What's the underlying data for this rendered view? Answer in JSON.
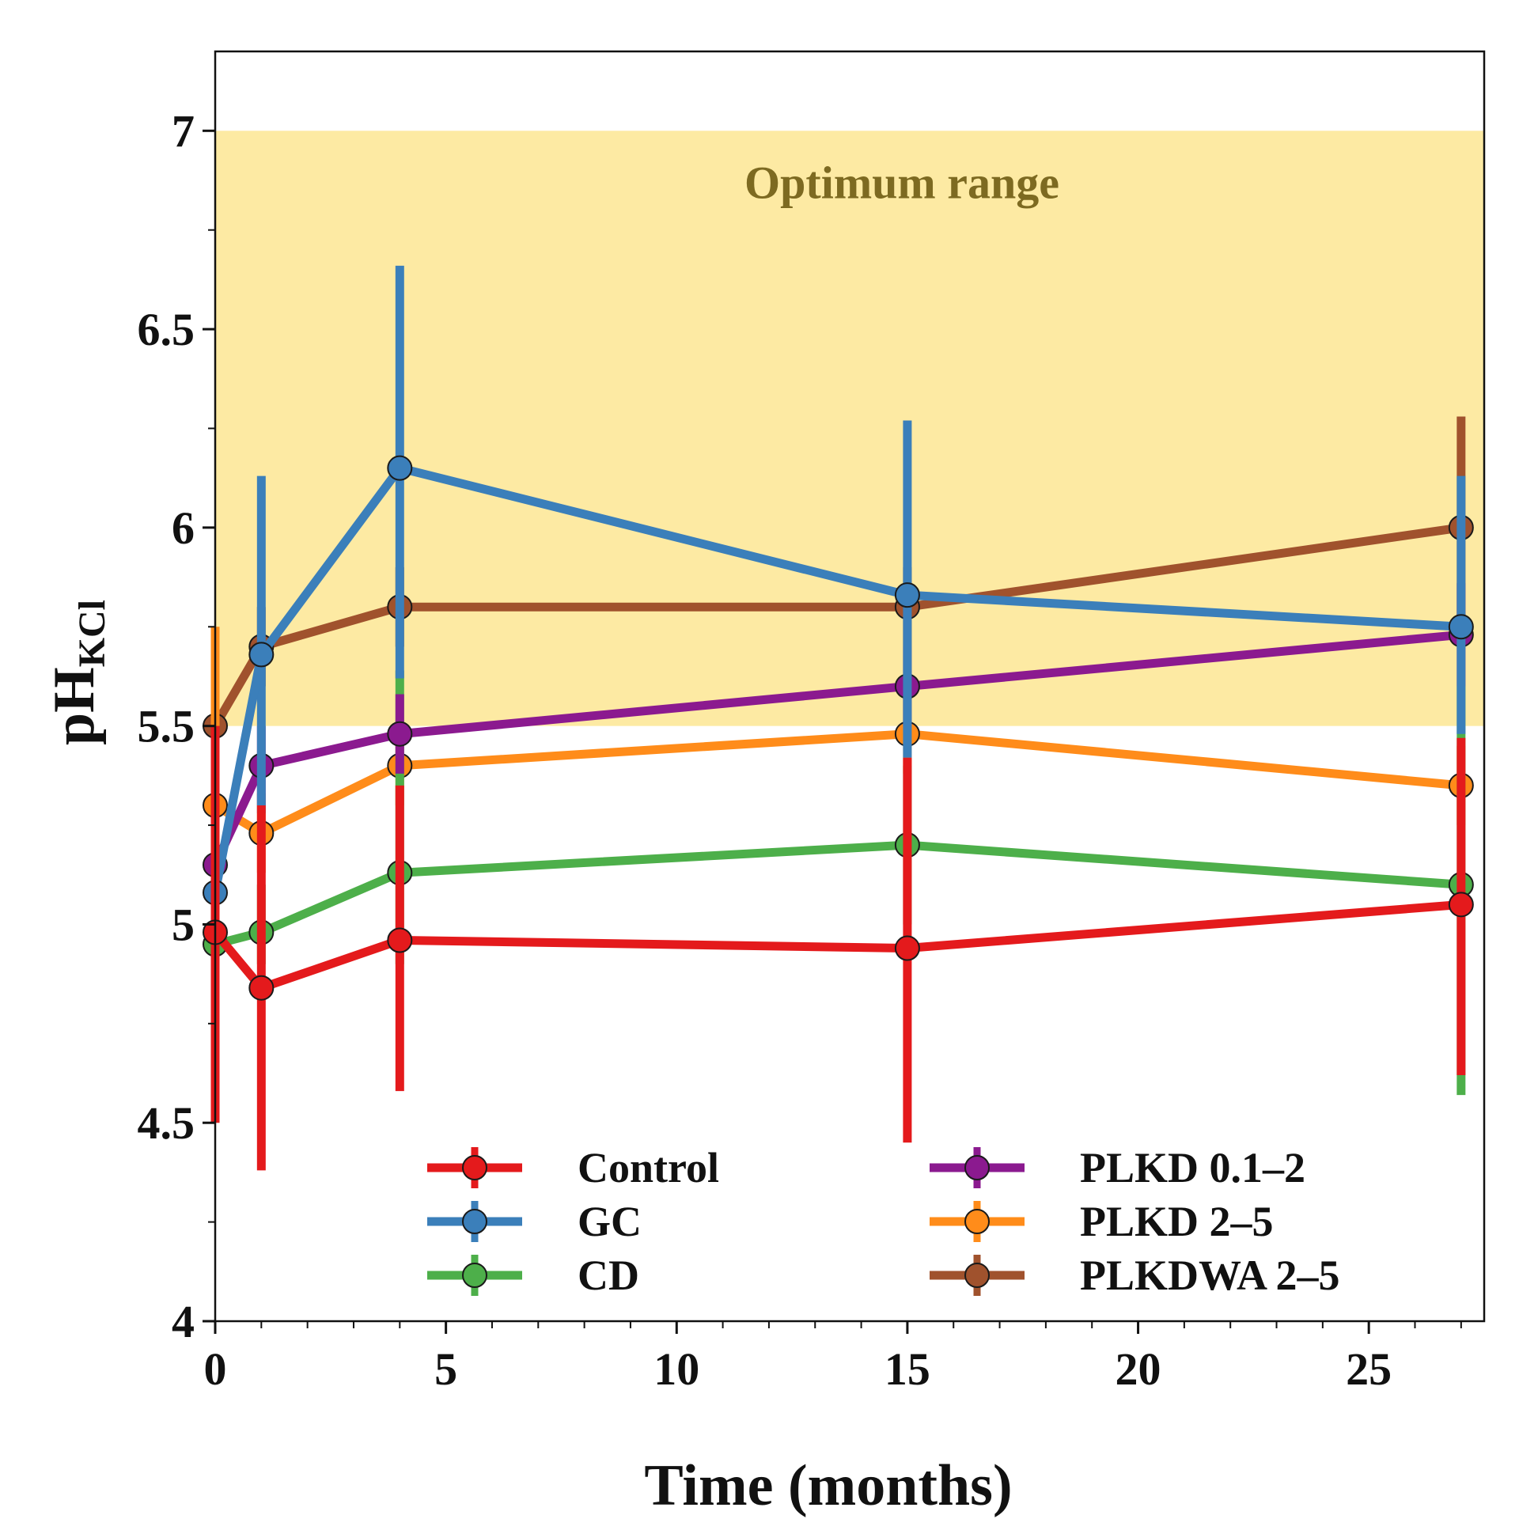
{
  "chart_data": {
    "type": "line",
    "title": "",
    "xlabel": "Time (months)",
    "ylabel": "pH",
    "ylabel_subscript": "KCl",
    "xlim": [
      0,
      27.5
    ],
    "ylim": [
      4,
      7.2
    ],
    "xticks": [
      0,
      5,
      10,
      15,
      20,
      25
    ],
    "yticks": [
      4,
      4.5,
      5,
      5.5,
      6,
      6.5,
      7
    ],
    "grid": false,
    "legend_position": "bottom-center",
    "band": {
      "label": "Optimum range",
      "y_from": 5.5,
      "y_to": 7,
      "color": "#fdeaa3",
      "label_color": "#7d6a21"
    },
    "x": [
      0,
      1,
      4,
      15,
      27
    ],
    "series": [
      {
        "name": "Control",
        "color": "#e41a1c",
        "values": [
          4.98,
          4.84,
          4.96,
          4.94,
          5.05
        ],
        "err_low": [
          4.5,
          4.38,
          4.58,
          4.45,
          4.62
        ],
        "err_high": [
          5.5,
          5.3,
          5.35,
          5.42,
          5.47
        ]
      },
      {
        "name": "GC",
        "color": "#3b7fba",
        "values": [
          5.08,
          5.68,
          6.15,
          5.83,
          5.75
        ],
        "err_low": [
          5.0,
          5.28,
          5.62,
          5.42,
          5.48
        ],
        "err_high": [
          5.3,
          6.13,
          6.66,
          6.27,
          6.13
        ]
      },
      {
        "name": "CD",
        "color": "#4daf4a",
        "values": [
          4.95,
          4.98,
          5.13,
          5.2,
          5.1
        ],
        "err_low": [
          4.85,
          4.9,
          4.9,
          5.0,
          4.57
        ],
        "err_high": [
          5.05,
          5.1,
          5.64,
          5.4,
          5.6
        ]
      },
      {
        "name": "PLKD 0.1–2",
        "color": "#8b1a8f",
        "values": [
          5.15,
          5.4,
          5.48,
          5.6,
          5.73
        ],
        "err_low": [
          5.05,
          5.3,
          5.38,
          5.5,
          5.6
        ],
        "err_high": [
          5.25,
          5.5,
          5.58,
          5.7,
          5.86
        ]
      },
      {
        "name": "PLKD 2–5",
        "color": "#ff8c1a",
        "values": [
          5.3,
          5.23,
          5.4,
          5.48,
          5.35
        ],
        "err_low": [
          5.1,
          5.13,
          5.3,
          5.38,
          5.25
        ],
        "err_high": [
          5.75,
          5.33,
          5.5,
          5.58,
          5.45
        ]
      },
      {
        "name": "PLKDWA 2–5",
        "color": "#a0522d",
        "values": [
          5.5,
          5.7,
          5.8,
          5.8,
          6.0
        ],
        "err_low": [
          5.3,
          5.6,
          5.7,
          5.7,
          5.72
        ],
        "err_high": [
          5.7,
          5.8,
          5.9,
          5.9,
          6.28
        ]
      }
    ],
    "draw_order": [
      "PLKDWA 2–5",
      "PLKD 2–5",
      "CD",
      "PLKD 0.1–2",
      "GC",
      "Control"
    ]
  }
}
